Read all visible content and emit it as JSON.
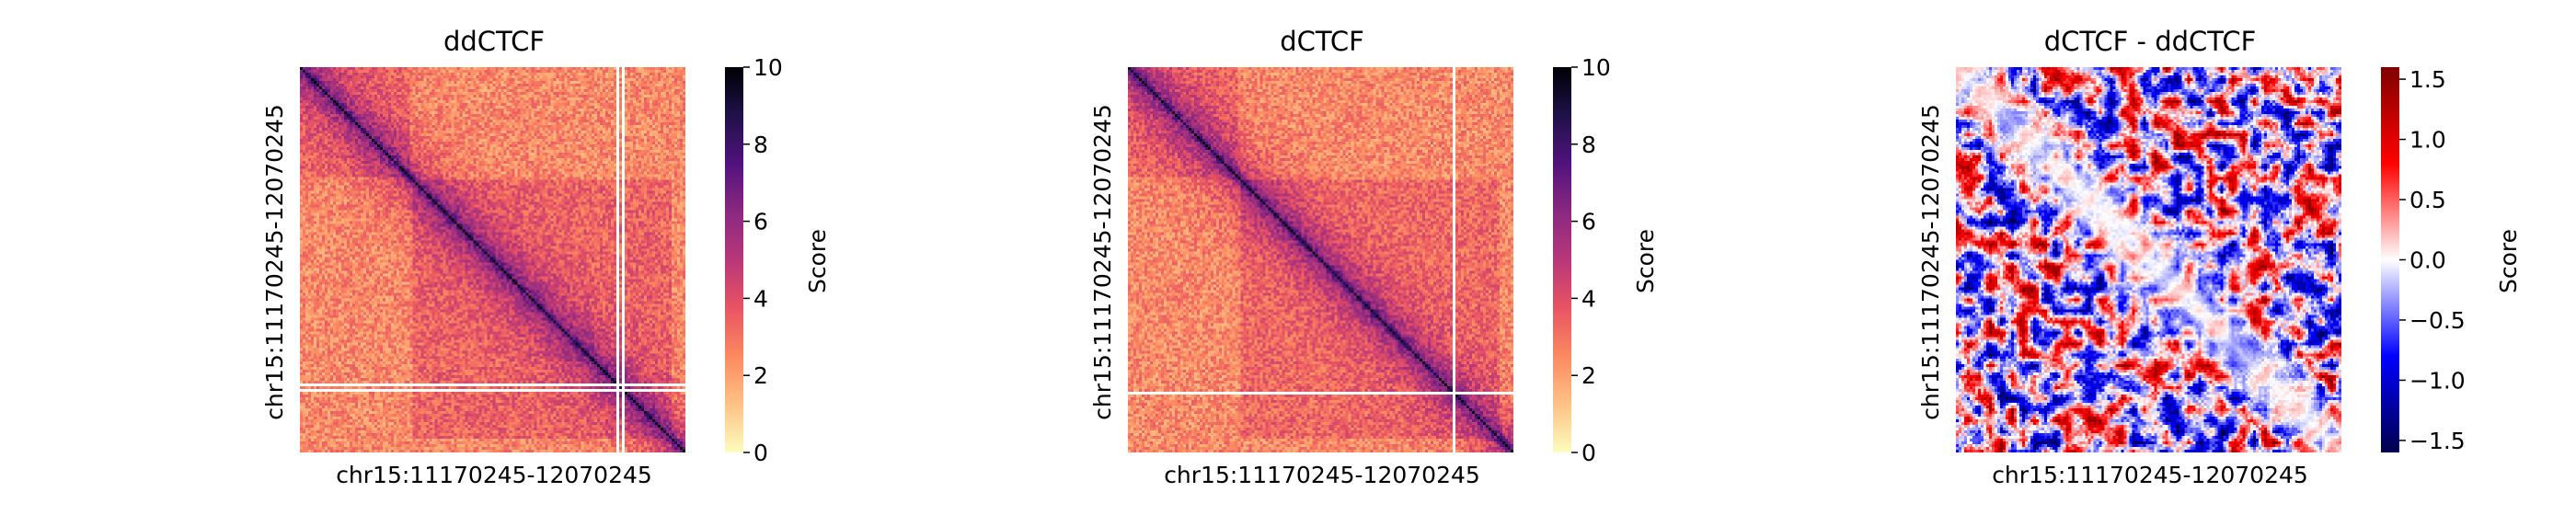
{
  "chart_data": [
    {
      "type": "heatmap",
      "title": "ddCTCF",
      "xlabel": "chr15:11170245-12070245",
      "ylabel": "chr15:11170245-12070245",
      "colormap": "magma_r",
      "colorbar": {
        "label": "Score",
        "range": [
          0,
          10
        ],
        "ticks": [
          "0",
          "2",
          "4",
          "6",
          "8",
          "10"
        ],
        "tick_values": [
          0,
          2,
          4,
          6,
          8,
          10
        ]
      },
      "grid": false,
      "description_values": {
        "diagonal": 9.5,
        "near_diagonal": 5,
        "background": 2.5,
        "tad_interior": 3.8
      }
    },
    {
      "type": "heatmap",
      "title": "dCTCF",
      "xlabel": "chr15:11170245-12070245",
      "ylabel": "chr15:11170245-12070245",
      "colormap": "magma_r",
      "colorbar": {
        "label": "Score",
        "range": [
          0,
          10
        ],
        "ticks": [
          "0",
          "2",
          "4",
          "6",
          "8",
          "10"
        ],
        "tick_values": [
          0,
          2,
          4,
          6,
          8,
          10
        ]
      },
      "grid": false,
      "description_values": {
        "diagonal": 9.5,
        "near_diagonal": 5,
        "background": 2.5,
        "tad_interior": 3.6
      }
    },
    {
      "type": "heatmap",
      "title": "dCTCF - ddCTCF",
      "xlabel": "chr15:11170245-12070245",
      "ylabel": "chr15:11170245-12070245",
      "colormap": "seismic",
      "colorbar": {
        "label": "Score",
        "range": [
          -1.6,
          1.6
        ],
        "ticks": [
          "1.5",
          "1.0",
          "0.5",
          "0.0",
          "−0.5",
          "−1.0",
          "−1.5"
        ],
        "tick_values": [
          1.5,
          1.0,
          0.5,
          0.0,
          -0.5,
          -1.0,
          -1.5
        ]
      },
      "grid": false,
      "description_values": {
        "diagonal": 0.0,
        "noise_amplitude": 1.2
      }
    }
  ]
}
